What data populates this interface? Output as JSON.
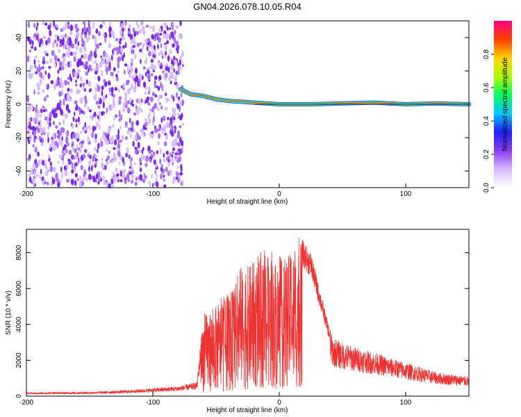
{
  "figure": {
    "title": "GN04.2026.078.10.05.R04"
  },
  "chart_data": [
    {
      "type": "heatmap",
      "xlabel": "Height of straight line (km)",
      "ylabel": "Frequency (Hz)",
      "xlim": [
        -200,
        150
      ],
      "ylim": [
        -50,
        50
      ],
      "xticks": [
        -200,
        -100,
        0,
        100
      ],
      "yticks": [
        -40,
        -20,
        0,
        20,
        40
      ],
      "noise_region_x": [
        -200,
        -75
      ],
      "signal_track": [
        {
          "x": -78,
          "y": 9
        },
        {
          "x": -70,
          "y": 6
        },
        {
          "x": -60,
          "y": 5
        },
        {
          "x": -50,
          "y": 3
        },
        {
          "x": -40,
          "y": 2
        },
        {
          "x": -30,
          "y": 1.5
        },
        {
          "x": -20,
          "y": 1
        },
        {
          "x": -10,
          "y": 0.5
        },
        {
          "x": 0,
          "y": 0
        },
        {
          "x": 25,
          "y": 0
        },
        {
          "x": 50,
          "y": 0.5
        },
        {
          "x": 75,
          "y": 1
        },
        {
          "x": 100,
          "y": 0
        },
        {
          "x": 125,
          "y": 0.5
        },
        {
          "x": 150,
          "y": 0
        }
      ],
      "colorbar": {
        "label": "Normalized spectral amplitude",
        "range": [
          0,
          1
        ],
        "ticks": [
          "0.0",
          "0.2",
          "0.4",
          "0.6",
          "0.8"
        ],
        "colors": [
          "#ffffff",
          "#d8b8ff",
          "#8a3cf0",
          "#2020ff",
          "#00c8ff",
          "#00ff60",
          "#b0ff00",
          "#ffd000",
          "#ff4000",
          "#ff0080"
        ]
      },
      "colors": {
        "noise": "#8a3cf0",
        "track_core": "#ff3030"
      }
    },
    {
      "type": "line",
      "xlabel": "Height of straight line (km)",
      "ylabel": "SNR (10 * v/v)",
      "xlim": [
        -200,
        150
      ],
      "ylim": [
        0,
        9300
      ],
      "xticks": [
        -200,
        -100,
        0,
        100
      ],
      "yticks": [
        0,
        2000,
        4000,
        6000,
        8000
      ],
      "color": "#ee3333",
      "envelope": [
        {
          "x": -200,
          "y": 200
        },
        {
          "x": -150,
          "y": 220
        },
        {
          "x": -120,
          "y": 300
        },
        {
          "x": -100,
          "y": 400
        },
        {
          "x": -80,
          "y": 500
        },
        {
          "x": -65,
          "y": 700
        },
        {
          "x": -60,
          "y": 4500
        },
        {
          "x": -50,
          "y": 5000
        },
        {
          "x": -40,
          "y": 5500
        },
        {
          "x": -30,
          "y": 7000
        },
        {
          "x": -20,
          "y": 7500
        },
        {
          "x": -10,
          "y": 7800
        },
        {
          "x": 0,
          "y": 7500
        },
        {
          "x": 10,
          "y": 8000
        },
        {
          "x": 17,
          "y": 8600
        },
        {
          "x": 25,
          "y": 7800
        },
        {
          "x": 35,
          "y": 5000
        },
        {
          "x": 42,
          "y": 3000
        },
        {
          "x": 50,
          "y": 2700
        },
        {
          "x": 75,
          "y": 2200
        },
        {
          "x": 100,
          "y": 1700
        },
        {
          "x": 125,
          "y": 1200
        },
        {
          "x": 150,
          "y": 1000
        }
      ]
    }
  ]
}
